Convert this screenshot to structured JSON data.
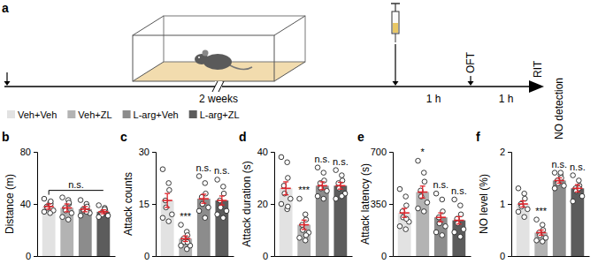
{
  "diagram": {
    "panel": "a",
    "duration": "2 weeks",
    "interval_1": "1 h",
    "test_1": "OFT",
    "interval_2": "1 h",
    "test_2": "RIT",
    "measure": "NO detection"
  },
  "legend_entries": [
    {
      "name": "Veh+Veh",
      "color": "#e2e2e2"
    },
    {
      "name": "Veh+ZL",
      "color": "#b3b3b3"
    },
    {
      "name": "L-arg+Veh",
      "color": "#8c8c8c"
    },
    {
      "name": "L-arg+ZL",
      "color": "#5c5c5c"
    }
  ],
  "chart_data": [
    {
      "type": "bar",
      "panel": "b",
      "y_label": "Distance (m)",
      "categories": [
        null,
        null,
        null,
        null
      ],
      "values": [
        38,
        37,
        36,
        34
      ],
      "errors": [
        2,
        3,
        2,
        1.5
      ],
      "points": [
        [
          44,
          41,
          40,
          38,
          37,
          35,
          34,
          33,
          42
        ],
        [
          45,
          43,
          40,
          37,
          35,
          33,
          30,
          28,
          41
        ],
        [
          43,
          40,
          38,
          36,
          35,
          33,
          31,
          34
        ],
        [
          39,
          37,
          35,
          33,
          32,
          31,
          30,
          36
        ]
      ],
      "colors": [
        "#e2e2e2",
        "#b3b3b3",
        "#8c8c8c",
        "#5c5c5c"
      ],
      "ylim": [
        0,
        80
      ],
      "yticks": [
        0,
        40,
        80
      ],
      "tick_labels": "y",
      "annotation": "n.s."
    },
    {
      "type": "bar",
      "panel": "c",
      "y_label": "Attack counts",
      "categories": [
        null,
        null,
        null,
        null
      ],
      "values": [
        16,
        5,
        16.5,
        16
      ],
      "errors": [
        2,
        0.8,
        1.3,
        1.3
      ],
      "points": [
        [
          25,
          21,
          19,
          16,
          14,
          12,
          11,
          10
        ],
        [
          9,
          7,
          6,
          5,
          4,
          3,
          3,
          2,
          4
        ],
        [
          23,
          21,
          18,
          17,
          15,
          14,
          13,
          11
        ],
        [
          22,
          20,
          18,
          16,
          14,
          13,
          12,
          11
        ]
      ],
      "colors": [
        "#e2e2e2",
        "#b3b3b3",
        "#8c8c8c",
        "#5c5c5c"
      ],
      "ylim": [
        0,
        30
      ],
      "yticks": [
        0,
        15,
        30
      ],
      "tick_labels": "y",
      "significance": [
        null,
        "***",
        "n.s.",
        "n.s."
      ]
    },
    {
      "type": "bar",
      "panel": "d",
      "y_label": "Attack duration (s)",
      "categories": [
        null,
        null,
        null,
        null
      ],
      "values": [
        26,
        12,
        27,
        27
      ],
      "errors": [
        2.5,
        1.8,
        1.5,
        1.3
      ],
      "points": [
        [
          38,
          36,
          30,
          27,
          24,
          22,
          20,
          18,
          19
        ],
        [
          22,
          16,
          14,
          12,
          10,
          9,
          7,
          6,
          8
        ],
        [
          34,
          32,
          29,
          28,
          26,
          25,
          23,
          22
        ],
        [
          33,
          31,
          29,
          28,
          26,
          24,
          22,
          23
        ]
      ],
      "colors": [
        "#e2e2e2",
        "#b3b3b3",
        "#8c8c8c",
        "#5c5c5c"
      ],
      "ylim": [
        0,
        40
      ],
      "yticks": [
        0,
        20,
        40
      ],
      "tick_labels": "y",
      "significance": [
        null,
        "***",
        "n.s.",
        "n.s."
      ]
    },
    {
      "type": "bar",
      "panel": "e",
      "y_label": "Attack latency (s)",
      "categories": [
        null,
        null,
        null,
        null
      ],
      "values": [
        290,
        430,
        260,
        240
      ],
      "errors": [
        30,
        40,
        30,
        25
      ],
      "points": [
        [
          450,
          400,
          340,
          300,
          260,
          230,
          200,
          180,
          250
        ],
        [
          640,
          560,
          500,
          440,
          400,
          360,
          320,
          300
        ],
        [
          420,
          380,
          300,
          260,
          220,
          200,
          160,
          140
        ],
        [
          380,
          340,
          280,
          250,
          220,
          180,
          160,
          130
        ]
      ],
      "colors": [
        "#e2e2e2",
        "#b3b3b3",
        "#8c8c8c",
        "#5c5c5c"
      ],
      "ylim": [
        0,
        700
      ],
      "yticks": [
        0,
        350,
        700
      ],
      "tick_labels": "y",
      "significance": [
        null,
        "*",
        "n.s.",
        "n.s."
      ]
    },
    {
      "type": "bar",
      "panel": "f",
      "y_label": "NO level (%)",
      "categories": [
        null,
        null,
        null,
        null
      ],
      "values": [
        1.0,
        0.45,
        1.45,
        1.3
      ],
      "errors": [
        0.06,
        0.05,
        0.05,
        0.07
      ],
      "points": [
        [
          1.3,
          1.2,
          1.1,
          1.0,
          0.95,
          0.9,
          0.85,
          0.75
        ],
        [
          0.7,
          0.6,
          0.5,
          0.45,
          0.4,
          0.35,
          0.3,
          0.28
        ],
        [
          1.6,
          1.55,
          1.5,
          1.45,
          1.4,
          1.35,
          1.3,
          1.6
        ],
        [
          1.55,
          1.45,
          1.35,
          1.3,
          1.25,
          1.15,
          1.05,
          1.3
        ]
      ],
      "colors": [
        "#e2e2e2",
        "#b3b3b3",
        "#8c8c8c",
        "#5c5c5c"
      ],
      "ylim": [
        0,
        2
      ],
      "yticks": [
        0,
        1,
        2
      ],
      "tick_labels": "y",
      "significance": [
        null,
        "***",
        "n.s.",
        "n.s."
      ]
    }
  ]
}
